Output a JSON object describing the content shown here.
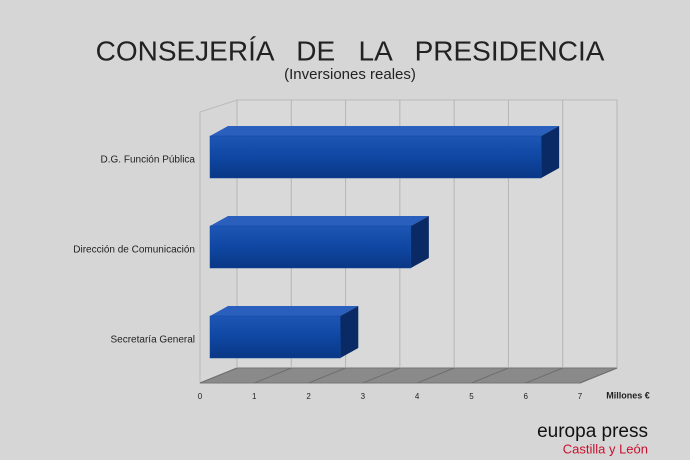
{
  "chart_data": {
    "type": "bar",
    "orientation": "horizontal",
    "title": "CONSEJERÍA   DE   LA   PRESIDENCIA",
    "subtitle": "(Inversiones reales)",
    "x_label": "Millones €",
    "categories": [
      "D.G. Función Pública",
      "Dirección de Comunicación",
      "Secretaría General"
    ],
    "values": [
      6.1,
      3.7,
      2.4
    ],
    "color": "#1046a0",
    "xlim": [
      0,
      7
    ],
    "xticks": [
      0,
      1,
      2,
      3,
      4,
      5,
      6,
      7
    ],
    "grid": true
  },
  "logo": {
    "name": "europa press",
    "region": "Castilla y León"
  }
}
